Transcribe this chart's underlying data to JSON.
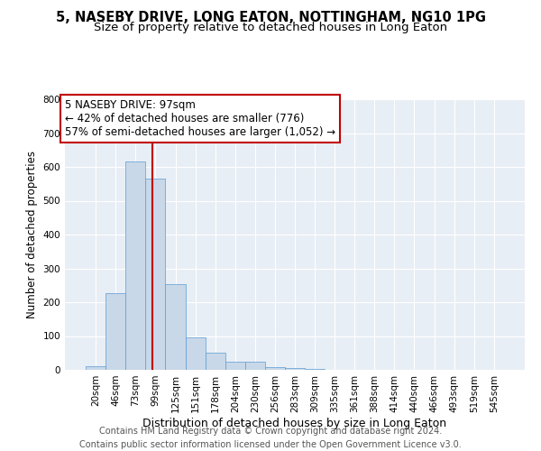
{
  "title_line1": "5, NASEBY DRIVE, LONG EATON, NOTTINGHAM, NG10 1PG",
  "title_line2": "Size of property relative to detached houses in Long Eaton",
  "xlabel": "Distribution of detached houses by size in Long Eaton",
  "ylabel": "Number of detached properties",
  "bar_color": "#c8d8e8",
  "bar_edge_color": "#5b9bd5",
  "bin_labels": [
    "20sqm",
    "46sqm",
    "73sqm",
    "99sqm",
    "125sqm",
    "151sqm",
    "178sqm",
    "204sqm",
    "230sqm",
    "256sqm",
    "283sqm",
    "309sqm",
    "335sqm",
    "361sqm",
    "388sqm",
    "414sqm",
    "440sqm",
    "466sqm",
    "493sqm",
    "519sqm",
    "545sqm"
  ],
  "bar_values": [
    10,
    228,
    617,
    565,
    253,
    96,
    50,
    25,
    25,
    8,
    5,
    2,
    0,
    0,
    0,
    0,
    0,
    0,
    0,
    0,
    0
  ],
  "vline_color": "#c00000",
  "vline_pos": 2.85,
  "ylim": [
    0,
    800
  ],
  "yticks": [
    0,
    100,
    200,
    300,
    400,
    500,
    600,
    700,
    800
  ],
  "annotation_line1": "5 NASEBY DRIVE: 97sqm",
  "annotation_line2": "← 42% of detached houses are smaller (776)",
  "annotation_line3": "57% of semi-detached houses are larger (1,052) →",
  "annotation_box_color": "white",
  "annotation_box_edge": "#c00000",
  "footer_line1": "Contains HM Land Registry data © Crown copyright and database right 2024.",
  "footer_line2": "Contains public sector information licensed under the Open Government Licence v3.0.",
  "plot_background": "#e8eef5",
  "grid_color": "white",
  "title_fontsize": 10.5,
  "subtitle_fontsize": 9.5,
  "tick_fontsize": 7.5,
  "ylabel_fontsize": 8.5,
  "xlabel_fontsize": 9,
  "annotation_fontsize": 8.5,
  "footer_fontsize": 7
}
